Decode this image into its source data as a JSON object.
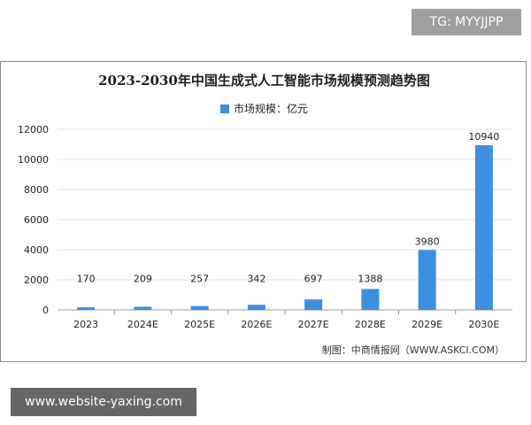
{
  "overlay": {
    "tg_label": "TG: MYYJJPP",
    "website_label": "www.website-yaxing.com"
  },
  "colors": {
    "bar": "#3d8fe0",
    "grid": "#e3e3e3",
    "axis": "#9a9a9a",
    "text": "#222222"
  },
  "source_text": "制图：中商情报网（WWW.ASKCI.COM）",
  "chart_data": {
    "type": "bar",
    "title": "2023-2030年中国生成式人工智能市场规模预测趋势图",
    "categories": [
      "2023",
      "2024E",
      "2025E",
      "2026E",
      "2027E",
      "2028E",
      "2029E",
      "2030E"
    ],
    "series": [
      {
        "name": "市场规模：亿元",
        "values": [
          170,
          209,
          257,
          342,
          697,
          1388,
          3980,
          10940
        ]
      }
    ],
    "xlabel": "",
    "ylabel": "",
    "ylim": [
      0,
      12000
    ],
    "yticks": [
      0,
      2000,
      4000,
      6000,
      8000,
      10000,
      12000
    ],
    "grid": true,
    "legend_position": "top-center",
    "data_labels": true
  }
}
